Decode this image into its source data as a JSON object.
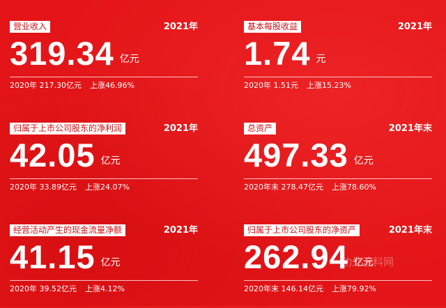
{
  "cards": [
    {
      "label": "营业收入",
      "year": "2021年",
      "value": "319.34",
      "unit": "亿元",
      "prev": "2020年 217.30亿元",
      "change": "上涨46.96%"
    },
    {
      "label": "基本每股收益",
      "year": "2021年",
      "value": "1.74",
      "unit": "元",
      "prev": "2020年 1.51元",
      "change": "上涨15.23%"
    },
    {
      "label": "归属于上市公司股东的净利润",
      "year": "2021年",
      "value": "42.05",
      "unit": "亿元",
      "prev": "2020年 33.89亿元",
      "change": "上涨24.07%"
    },
    {
      "label": "总资产",
      "year": "2021年末",
      "value": "497.33",
      "unit": "亿元",
      "prev": "2020年末 278.47亿元",
      "change": "上涨78.60%"
    },
    {
      "label": "经营活动产生的现金流量净额",
      "year": "2021年",
      "value": "41.15",
      "unit": "亿元",
      "prev": "2020年 39.52亿元",
      "change": "上涨4.12%"
    },
    {
      "label": "归属于上市公司股东的净资产",
      "year": "2021年末",
      "value": "262.94",
      "unit": "亿元",
      "prev": "2020年末 146.14亿元",
      "change": "上涨79.92%"
    }
  ],
  "watermark": "功外涂料网"
}
